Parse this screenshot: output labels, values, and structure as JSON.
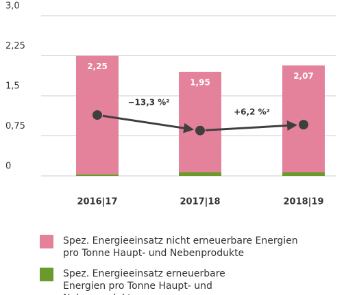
{
  "chart_data": {
    "type": "bar",
    "stacked": true,
    "categories": [
      "2016|17",
      "2017|18",
      "2018|19"
    ],
    "series": [
      {
        "name": "Spez. Energieeinsatz erneuerbare Energien pro Tonne Haupt- und Nebenprodukte",
        "color": "#6b9a2c",
        "values": [
          0.03,
          0.07,
          0.07
        ]
      },
      {
        "name": "Spez. Energieeinsatz nicht erneuerbare Energien pro Tonne Haupt- und Nebenprodukte",
        "color": "#e5829b",
        "values": [
          2.22,
          1.88,
          2.0
        ]
      }
    ],
    "totals": {
      "values": [
        2.25,
        1.95,
        2.07
      ],
      "value_labels": [
        "2,25",
        "1,95",
        "2,07"
      ]
    },
    "points": {
      "color": "#3f3f3f",
      "values": [
        1.14,
        0.85,
        0.96
      ]
    },
    "changes": {
      "values": [
        -13.3,
        6.2
      ],
      "value_labels": [
        "−13,3 %²",
        "+6,2 %²"
      ]
    },
    "ylim": [
      0,
      3
    ],
    "yticks": [
      0,
      {
        "value": 0.75,
        "label": "0,75"
      },
      {
        "value": 1.5,
        "label": "1,5"
      },
      {
        "value": 2.25,
        "label": "2,25"
      },
      {
        "value": 3,
        "label": "3,0"
      }
    ],
    "grid": true
  }
}
